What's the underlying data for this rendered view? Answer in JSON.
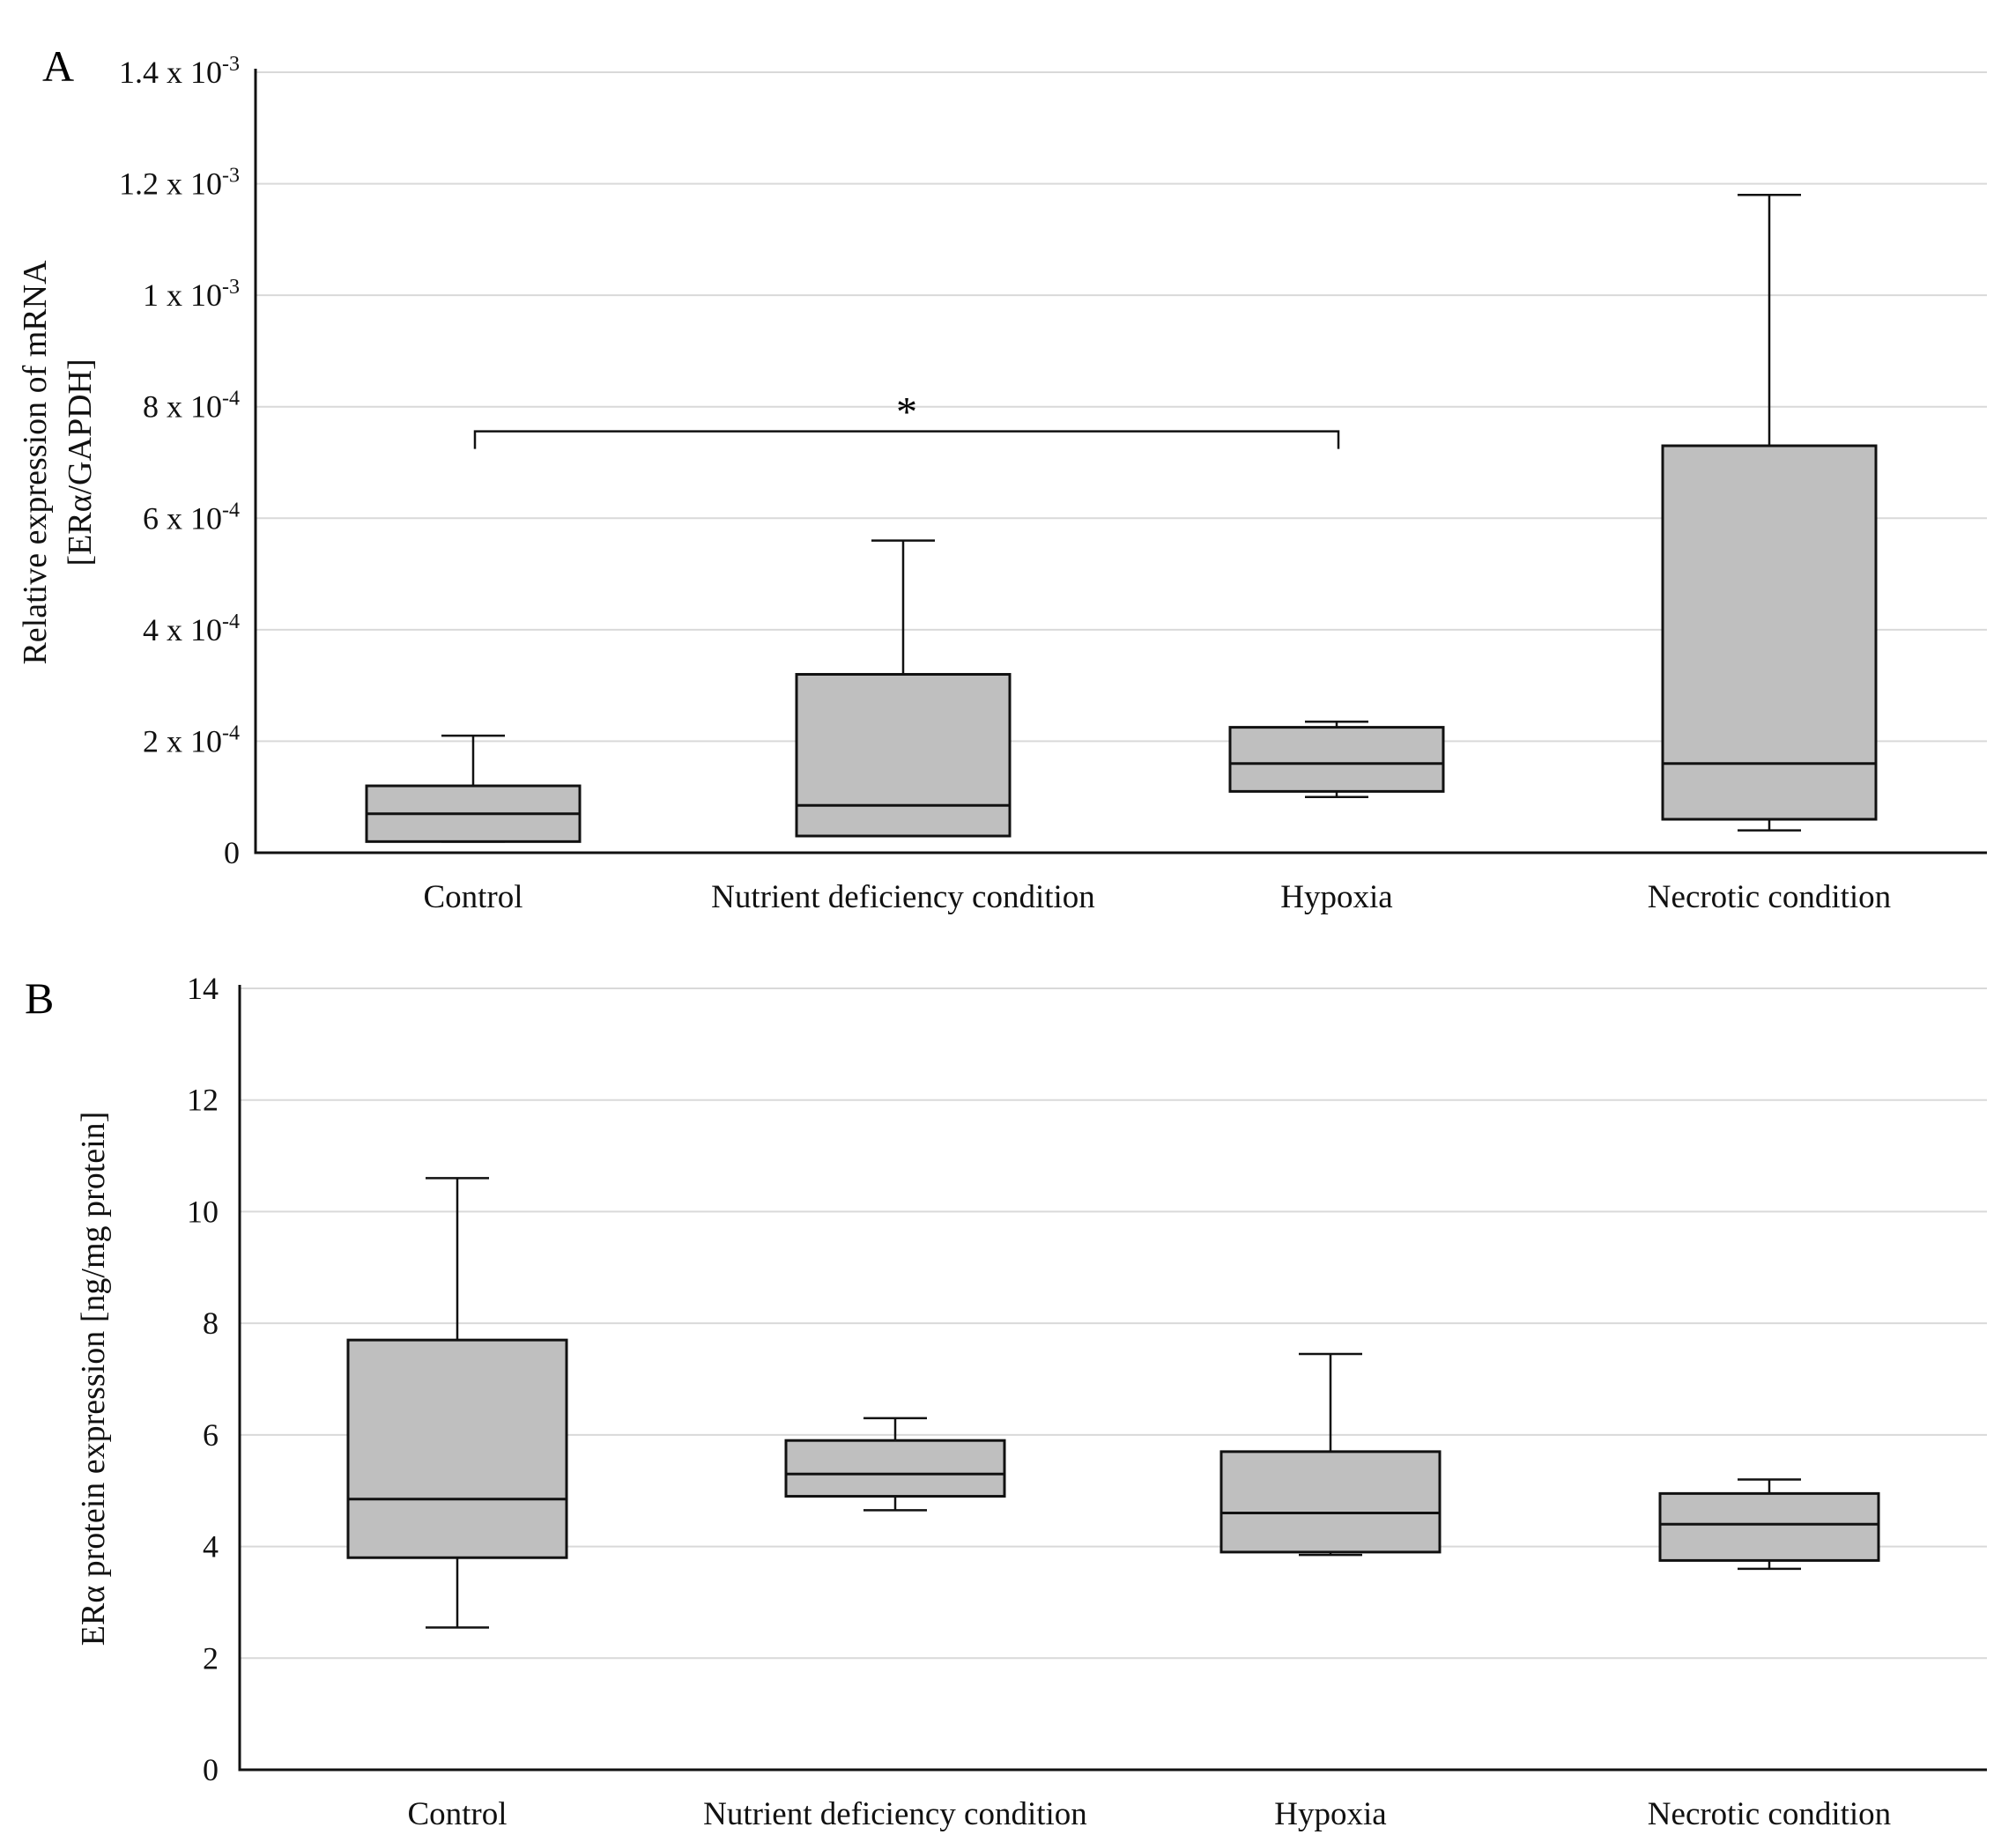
{
  "chart_data": [
    {
      "panel": "A",
      "type": "box",
      "ylabel_lines": [
        "Relative expression of mRNA",
        "[ERα/GAPDH]"
      ],
      "ylim": [
        0,
        0.0014
      ],
      "y_ticks": [
        {
          "value": 0,
          "label": "0"
        },
        {
          "value": 0.0002,
          "label": "2 x 10-4"
        },
        {
          "value": 0.0004,
          "label": "4 x 10-4"
        },
        {
          "value": 0.0006,
          "label": "6 x 10-4"
        },
        {
          "value": 0.0008,
          "label": "8 x 10-4"
        },
        {
          "value": 0.001,
          "label": "1 x 10-3"
        },
        {
          "value": 0.0012,
          "label": "1.2 x 10-3"
        },
        {
          "value": 0.0014,
          "label": "1.4 x 10-3"
        }
      ],
      "categories": [
        "Control",
        "Nutrient deficiency condition",
        "Hypoxia",
        "Necrotic condition"
      ],
      "boxes": [
        {
          "category": "Control",
          "min": 2e-05,
          "q1": 2e-05,
          "median": 7e-05,
          "q3": 0.00012,
          "max": 0.00021
        },
        {
          "category": "Nutrient deficiency condition",
          "min": 3e-05,
          "q1": 3e-05,
          "median": 8.5e-05,
          "q3": 0.00032,
          "max": 0.00056
        },
        {
          "category": "Hypoxia",
          "min": 0.0001,
          "q1": 0.00011,
          "median": 0.00016,
          "q3": 0.000225,
          "max": 0.000235
        },
        {
          "category": "Necrotic condition",
          "min": 4e-05,
          "q1": 6e-05,
          "median": 0.00016,
          "q3": 0.00073,
          "max": 0.00118
        }
      ],
      "significance": {
        "from": "Control",
        "to": "Hypoxia",
        "level": 0.00074,
        "label": "*"
      }
    },
    {
      "panel": "B",
      "type": "box",
      "ylabel_lines": [
        "ERα protein expression [ng/mg protein]"
      ],
      "ylim": [
        0,
        14
      ],
      "y_ticks": [
        {
          "value": 0,
          "label": "0"
        },
        {
          "value": 2,
          "label": "2"
        },
        {
          "value": 4,
          "label": "4"
        },
        {
          "value": 6,
          "label": "6"
        },
        {
          "value": 8,
          "label": "8"
        },
        {
          "value": 10,
          "label": "10"
        },
        {
          "value": 12,
          "label": "12"
        },
        {
          "value": 14,
          "label": "14"
        }
      ],
      "categories": [
        "Control",
        "Nutrient deficiency condition",
        "Hypoxia",
        "Necrotic condition"
      ],
      "boxes": [
        {
          "category": "Control",
          "min": 2.55,
          "q1": 3.8,
          "median": 4.85,
          "q3": 7.7,
          "max": 10.6
        },
        {
          "category": "Nutrient deficiency condition",
          "min": 4.65,
          "q1": 4.9,
          "median": 5.3,
          "q3": 5.9,
          "max": 6.3
        },
        {
          "category": "Hypoxia",
          "min": 3.85,
          "q1": 3.9,
          "median": 4.6,
          "q3": 5.7,
          "max": 7.45
        },
        {
          "category": "Necrotic condition",
          "min": 3.6,
          "q1": 3.75,
          "median": 4.4,
          "q3": 4.95,
          "max": 5.2
        }
      ],
      "significance": null
    }
  ]
}
